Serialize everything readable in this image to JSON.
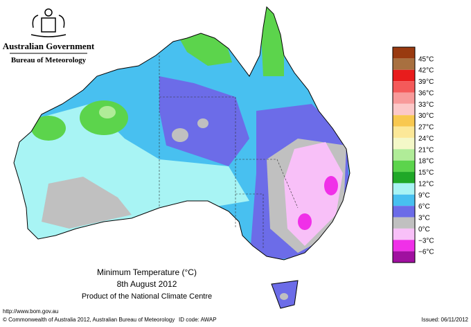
{
  "header": {
    "government": "Australian Government",
    "agency": "Bureau of Meteorology"
  },
  "map": {
    "title": "Minimum Temperature (°C)",
    "date": "8th August 2012",
    "product": "Product of the National Climate Centre"
  },
  "legend": {
    "labels": [
      "45°C",
      "42°C",
      "39°C",
      "36°C",
      "33°C",
      "30°C",
      "27°C",
      "24°C",
      "21°C",
      "18°C",
      "15°C",
      "12°C",
      "9°C",
      "6°C",
      "3°C",
      "0°C",
      "−3°C",
      "−6°C"
    ],
    "colors": [
      "#993a10",
      "#a87040",
      "#e81c1c",
      "#f45a5a",
      "#f89a9a",
      "#fcc8c8",
      "#f8c850",
      "#fce898",
      "#f4f8c8",
      "#b0ec98",
      "#5cd44c",
      "#20a828",
      "#a8f4f4",
      "#48c0f0",
      "#6c6ce8",
      "#c0c0c0",
      "#f8c0f8",
      "#f030e8",
      "#a010a0"
    ]
  },
  "footer": {
    "url": "http://www.bom.gov.au",
    "copyright": "© Commonwealth of Australia 2012, Australian Bureau of Meteorology",
    "id_code": "ID code: AWAP",
    "issued": "Issued: 06/11/2012"
  }
}
